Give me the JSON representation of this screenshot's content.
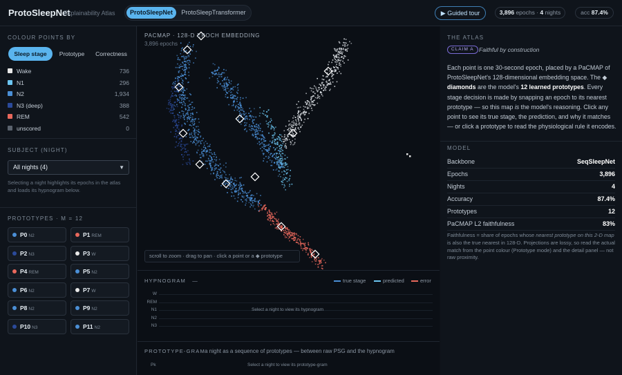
{
  "topbar": {
    "brand": "ProtoSleepNet",
    "subtitle": "Explainability Atlas",
    "model_tabs": [
      {
        "label": "ProtoSleepNet",
        "active": true
      },
      {
        "label": "ProtoSleepTransformer",
        "active": false
      }
    ],
    "guided_tour": "▶ Guided tour",
    "epochs_value": "3,896",
    "epochs_word": "epochs ·",
    "nights_value": "4",
    "nights_word": "nights",
    "acc_label": "acc",
    "acc_value": "87.4%"
  },
  "left": {
    "colour_heading": "COLOUR POINTS BY",
    "colour_modes": [
      {
        "label": "Sleep stage",
        "active": true
      },
      {
        "label": "Prototype",
        "active": false
      },
      {
        "label": "Correctness",
        "active": false
      }
    ],
    "legend": [
      {
        "label": "Wake",
        "count": "736",
        "color": "#e8e8e8"
      },
      {
        "label": "N1",
        "count": "296",
        "color": "#6cc6f2"
      },
      {
        "label": "N2",
        "count": "1,934",
        "color": "#4b8fd6"
      },
      {
        "label": "N3 (deep)",
        "count": "388",
        "color": "#2b4a9a"
      },
      {
        "label": "REM",
        "count": "542",
        "color": "#e8685c"
      },
      {
        "label": "unscored",
        "count": "0",
        "color": "#5a626d"
      }
    ],
    "subject_heading": "SUBJECT (NIGHT)",
    "subject_selected": "All nights (4)",
    "subject_note": "Selecting a night highlights its epochs in the atlas and loads its hypnogram below.",
    "prototypes_heading": "PROTOTYPES · M = 12",
    "prototypes": [
      {
        "name": "P0",
        "stage": "N2",
        "color": "#4b8fd6"
      },
      {
        "name": "P1",
        "stage": "REM",
        "color": "#e8685c"
      },
      {
        "name": "P2",
        "stage": "N3",
        "color": "#2b4a9a"
      },
      {
        "name": "P3",
        "stage": "W",
        "color": "#e8e8e8"
      },
      {
        "name": "P4",
        "stage": "REM",
        "color": "#e8685c"
      },
      {
        "name": "P5",
        "stage": "N2",
        "color": "#4b8fd6"
      },
      {
        "name": "P6",
        "stage": "N2",
        "color": "#4b8fd6"
      },
      {
        "name": "P7",
        "stage": "W",
        "color": "#e8e8e8"
      },
      {
        "name": "P8",
        "stage": "N2",
        "color": "#4b8fd6"
      },
      {
        "name": "P9",
        "stage": "N2",
        "color": "#4b8fd6"
      },
      {
        "name": "P10",
        "stage": "N3",
        "color": "#2b4a9a"
      },
      {
        "name": "P11",
        "stage": "N2",
        "color": "#4b8fd6"
      }
    ]
  },
  "center": {
    "atlas_title": "PACMAP · 128-D EPOCH EMBEDDING",
    "atlas_count": "3,896 epochs",
    "hint": "scroll to zoom · drag to pan · click a point or a ◆ prototype",
    "hypnogram_title": "HYPNOGRAM",
    "hypnogram_dash": "—",
    "hyp_legend": [
      {
        "label": "true stage",
        "color": "#4b8fd6"
      },
      {
        "label": "predicted",
        "color": "#6cc6f2"
      },
      {
        "label": "error",
        "color": "#e8685c"
      }
    ],
    "stages": [
      "W",
      "REM",
      "N1",
      "N2",
      "N3"
    ],
    "hyp_empty": "Select a night to view its hypnogram",
    "pg_title": "PROTOTYPE-GRAM",
    "pg_subtitle": "a night as a sequence of prototypes — between raw PSG and the hypnogram",
    "pg_row": "Pk",
    "pg_empty": "Select a night to view its prototype-gram"
  },
  "right": {
    "heading": "THE ATLAS",
    "claim_tag": "CLAIM A",
    "claim_text": "Faithful by construction",
    "para_1": "Each point is one 30-second epoch, placed by a PaCMAP of ProtoSleepNet's 128-dimensional embedding space. The ◆",
    "para_b1": "diamonds",
    "para_2": "are the model's",
    "para_b2": "12 learned prototypes",
    "para_3": ". Every stage decision is made by snapping an epoch to its nearest prototype — so this map",
    "para_i": "is",
    "para_4": "the model's reasoning. Click any point to see its true stage, the prediction, and why it matches — or click a prototype to read the physiological rule it encodes.",
    "model_heading": "MODEL",
    "model_rows": [
      {
        "k": "Backbone",
        "v": "SeqSleepNet"
      },
      {
        "k": "Epochs",
        "v": "3,896"
      },
      {
        "k": "Nights",
        "v": "4"
      },
      {
        "k": "Accuracy",
        "v": "87.4%"
      },
      {
        "k": "Prototypes",
        "v": "12"
      },
      {
        "k": "PaCMAP L2 faithfulness",
        "v": "83%"
      }
    ],
    "fnote_1": "Faithfulness = share of epochs whose",
    "fnote_i": "nearest prototype on this 2-D map",
    "fnote_2": "is also the true nearest in 128-D. Projections are lossy, so read the actual match from the point colour (Prototype mode) and the detail panel — not raw proximity."
  }
}
